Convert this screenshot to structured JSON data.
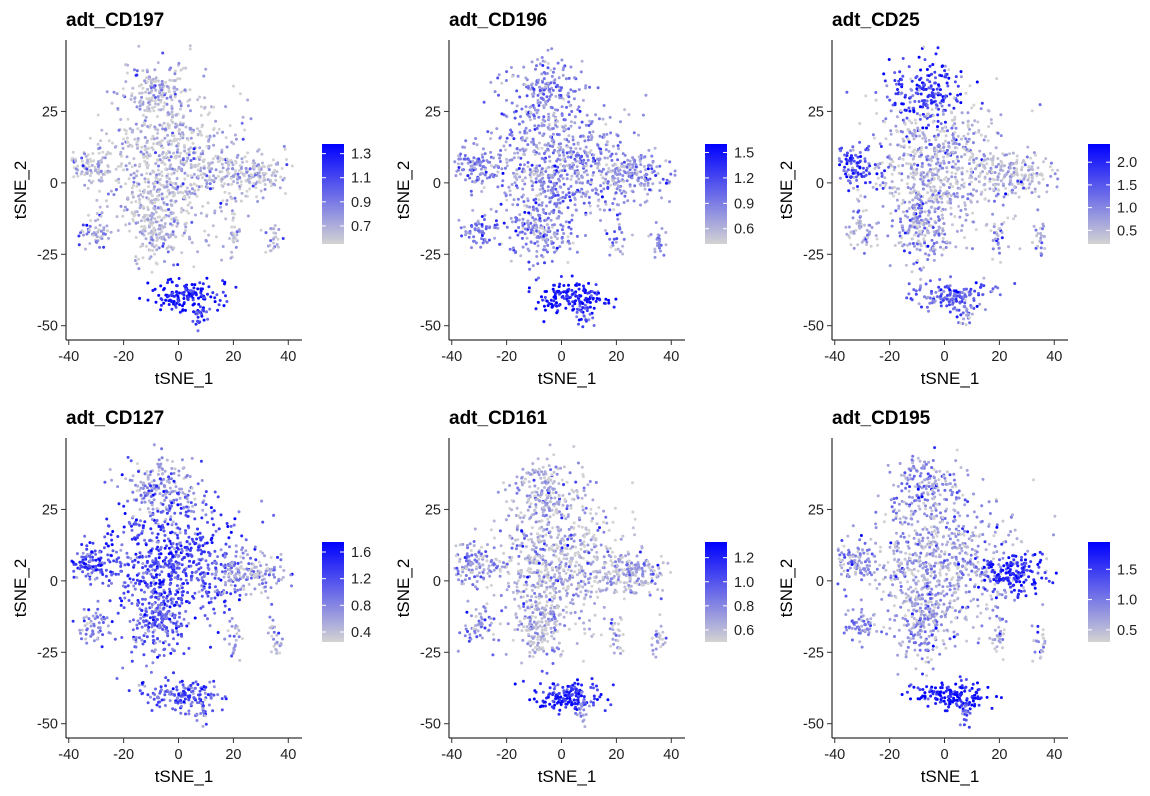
{
  "chart_data": [
    {
      "type": "scatter",
      "title": "adt_CD197",
      "xlabel": "tSNE_1",
      "ylabel": "tSNE_2",
      "xticks": [
        -40,
        -20,
        0,
        20,
        40
      ],
      "yticks": [
        25,
        0,
        -25,
        -50
      ],
      "xlim": [
        -41,
        45
      ],
      "ylim": [
        -55,
        50
      ],
      "colorbar": {
        "ticks": [
          "1.3",
          "1.1",
          "0.9",
          "0.7"
        ],
        "tick_values": [
          1.3,
          1.1,
          0.9,
          0.7
        ],
        "min": 0.55,
        "max": 1.38,
        "low_color": "#d3d3d3",
        "high_color": "#0000ff"
      },
      "clusters": [
        {
          "name": "top",
          "x": -6,
          "y": 31,
          "sx": 6.5,
          "sy": 6,
          "n": 190,
          "level": 0.12
        },
        {
          "name": "central",
          "x": -2,
          "y": 6,
          "sx": 13,
          "sy": 11,
          "n": 650,
          "level": 0.1
        },
        {
          "name": "left",
          "x": -32,
          "y": 6,
          "sx": 4.5,
          "sy": 3.5,
          "n": 100,
          "level": 0.08
        },
        {
          "name": "right",
          "x": 26,
          "y": 3,
          "sx": 7,
          "sy": 3.5,
          "n": 170,
          "level": 0.08
        },
        {
          "name": "lower-middle",
          "x": -8,
          "y": -15,
          "sx": 5,
          "sy": 7,
          "n": 190,
          "level": 0.1
        },
        {
          "name": "small-left",
          "x": -30,
          "y": -16,
          "sx": 3,
          "sy": 3.5,
          "n": 55,
          "level": 0.15
        },
        {
          "name": "small-a",
          "x": 20,
          "y": -19,
          "sx": 1.3,
          "sy": 4,
          "n": 25,
          "level": 0.1
        },
        {
          "name": "small-b",
          "x": 35,
          "y": -20,
          "sx": 1.3,
          "sy": 3.5,
          "n": 25,
          "level": 0.1
        },
        {
          "name": "bottom",
          "x": 3,
          "y": -40,
          "sx": 7,
          "sy": 2.8,
          "n": 150,
          "level": 0.9
        },
        {
          "name": "bottom-tail",
          "x": 8,
          "y": -46,
          "sx": 1.5,
          "sy": 2.5,
          "n": 20,
          "level": 0.6
        }
      ]
    },
    {
      "type": "scatter",
      "title": "adt_CD196",
      "xlabel": "tSNE_1",
      "ylabel": "tSNE_2",
      "xticks": [
        -40,
        -20,
        0,
        20,
        40
      ],
      "yticks": [
        25,
        0,
        -25,
        -50
      ],
      "xlim": [
        -41,
        45
      ],
      "ylim": [
        -55,
        50
      ],
      "colorbar": {
        "ticks": [
          "1.5",
          "1.2",
          "0.9",
          "0.6"
        ],
        "tick_values": [
          1.5,
          1.2,
          0.9,
          0.6
        ],
        "min": 0.42,
        "max": 1.6,
        "low_color": "#d3d3d3",
        "high_color": "#0000ff"
      },
      "clusters": [
        {
          "name": "top",
          "x": -6,
          "y": 31,
          "sx": 6.5,
          "sy": 6,
          "n": 190,
          "level": 0.35
        },
        {
          "name": "central",
          "x": -2,
          "y": 6,
          "sx": 13,
          "sy": 11,
          "n": 650,
          "level": 0.3
        },
        {
          "name": "left",
          "x": -32,
          "y": 6,
          "sx": 4.5,
          "sy": 3.5,
          "n": 100,
          "level": 0.35
        },
        {
          "name": "right",
          "x": 26,
          "y": 3,
          "sx": 7,
          "sy": 3.5,
          "n": 170,
          "level": 0.3
        },
        {
          "name": "lower-middle",
          "x": -8,
          "y": -15,
          "sx": 5,
          "sy": 7,
          "n": 190,
          "level": 0.35
        },
        {
          "name": "small-left",
          "x": -30,
          "y": -16,
          "sx": 3,
          "sy": 3.5,
          "n": 55,
          "level": 0.45
        },
        {
          "name": "small-a",
          "x": 20,
          "y": -19,
          "sx": 1.3,
          "sy": 4,
          "n": 25,
          "level": 0.3
        },
        {
          "name": "small-b",
          "x": 35,
          "y": -20,
          "sx": 1.3,
          "sy": 3.5,
          "n": 25,
          "level": 0.3
        },
        {
          "name": "bottom",
          "x": 3,
          "y": -40,
          "sx": 7,
          "sy": 2.8,
          "n": 150,
          "level": 0.9
        },
        {
          "name": "bottom-tail",
          "x": 8,
          "y": -46,
          "sx": 1.5,
          "sy": 2.5,
          "n": 20,
          "level": 0.6
        }
      ]
    },
    {
      "type": "scatter",
      "title": "adt_CD25",
      "xlabel": "tSNE_1",
      "ylabel": "tSNE_2",
      "xticks": [
        -40,
        -20,
        0,
        20,
        40
      ],
      "yticks": [
        25,
        0,
        -25,
        -50
      ],
      "xlim": [
        -41,
        45
      ],
      "ylim": [
        -55,
        50
      ],
      "colorbar": {
        "ticks": [
          "2.0",
          "1.5",
          "1.0",
          "0.5"
        ],
        "tick_values": [
          2.0,
          1.5,
          1.0,
          0.5
        ],
        "min": 0.2,
        "max": 2.4,
        "low_color": "#d3d3d3",
        "high_color": "#0000ff"
      },
      "clusters": [
        {
          "name": "top",
          "x": -6,
          "y": 31,
          "sx": 6.5,
          "sy": 6,
          "n": 190,
          "level": 0.75
        },
        {
          "name": "central",
          "x": -2,
          "y": 6,
          "sx": 13,
          "sy": 11,
          "n": 650,
          "level": 0.15
        },
        {
          "name": "left",
          "x": -32,
          "y": 6,
          "sx": 4.5,
          "sy": 3.5,
          "n": 100,
          "level": 0.7
        },
        {
          "name": "right",
          "x": 26,
          "y": 3,
          "sx": 7,
          "sy": 3.5,
          "n": 170,
          "level": 0.12
        },
        {
          "name": "lower-middle",
          "x": -8,
          "y": -15,
          "sx": 5,
          "sy": 7,
          "n": 190,
          "level": 0.25
        },
        {
          "name": "small-left",
          "x": -30,
          "y": -16,
          "sx": 3,
          "sy": 3.5,
          "n": 55,
          "level": 0.2
        },
        {
          "name": "small-a",
          "x": 20,
          "y": -19,
          "sx": 1.3,
          "sy": 4,
          "n": 25,
          "level": 0.2
        },
        {
          "name": "small-b",
          "x": 35,
          "y": -20,
          "sx": 1.3,
          "sy": 3.5,
          "n": 25,
          "level": 0.2
        },
        {
          "name": "bottom",
          "x": 3,
          "y": -40,
          "sx": 7,
          "sy": 2.8,
          "n": 150,
          "level": 0.55
        },
        {
          "name": "bottom-tail",
          "x": 8,
          "y": -46,
          "sx": 1.5,
          "sy": 2.5,
          "n": 20,
          "level": 0.3
        }
      ]
    },
    {
      "type": "scatter",
      "title": "adt_CD127",
      "xlabel": "tSNE_1",
      "ylabel": "tSNE_2",
      "xticks": [
        -40,
        -20,
        0,
        20,
        40
      ],
      "yticks": [
        25,
        0,
        -25,
        -50
      ],
      "xlim": [
        -41,
        45
      ],
      "ylim": [
        -55,
        50
      ],
      "colorbar": {
        "ticks": [
          "1.6",
          "1.2",
          "0.8",
          "0.4"
        ],
        "tick_values": [
          1.6,
          1.2,
          0.8,
          0.4
        ],
        "min": 0.25,
        "max": 1.75,
        "low_color": "#d3d3d3",
        "high_color": "#0000ff"
      },
      "clusters": [
        {
          "name": "top",
          "x": -6,
          "y": 31,
          "sx": 6.5,
          "sy": 6,
          "n": 190,
          "level": 0.25
        },
        {
          "name": "central",
          "x": -2,
          "y": 6,
          "sx": 13,
          "sy": 11,
          "n": 650,
          "level": 0.65
        },
        {
          "name": "left",
          "x": -32,
          "y": 6,
          "sx": 4.5,
          "sy": 3.5,
          "n": 100,
          "level": 0.6
        },
        {
          "name": "right",
          "x": 26,
          "y": 3,
          "sx": 7,
          "sy": 3.5,
          "n": 170,
          "level": 0.25
        },
        {
          "name": "lower-middle",
          "x": -8,
          "y": -15,
          "sx": 5,
          "sy": 7,
          "n": 190,
          "level": 0.5
        },
        {
          "name": "small-left",
          "x": -30,
          "y": -16,
          "sx": 3,
          "sy": 3.5,
          "n": 55,
          "level": 0.35
        },
        {
          "name": "small-a",
          "x": 20,
          "y": -19,
          "sx": 1.3,
          "sy": 4,
          "n": 25,
          "level": 0.15
        },
        {
          "name": "small-b",
          "x": 35,
          "y": -20,
          "sx": 1.3,
          "sy": 3.5,
          "n": 25,
          "level": 0.15
        },
        {
          "name": "bottom",
          "x": 3,
          "y": -40,
          "sx": 7,
          "sy": 2.8,
          "n": 150,
          "level": 0.55
        },
        {
          "name": "bottom-tail",
          "x": 8,
          "y": -46,
          "sx": 1.5,
          "sy": 2.5,
          "n": 20,
          "level": 0.45
        }
      ]
    },
    {
      "type": "scatter",
      "title": "adt_CD161",
      "xlabel": "tSNE_1",
      "ylabel": "tSNE_2",
      "xticks": [
        -40,
        -20,
        0,
        20,
        40
      ],
      "yticks": [
        25,
        0,
        -25,
        -50
      ],
      "xlim": [
        -41,
        45
      ],
      "ylim": [
        -55,
        50
      ],
      "colorbar": {
        "ticks": [
          "1.2",
          "1.0",
          "0.8",
          "0.6"
        ],
        "tick_values": [
          1.2,
          1.0,
          0.8,
          0.6
        ],
        "min": 0.5,
        "max": 1.33,
        "low_color": "#d3d3d3",
        "high_color": "#0000ff"
      },
      "clusters": [
        {
          "name": "top",
          "x": -6,
          "y": 31,
          "sx": 6.5,
          "sy": 6,
          "n": 190,
          "level": 0.18
        },
        {
          "name": "central",
          "x": -2,
          "y": 6,
          "sx": 13,
          "sy": 11,
          "n": 650,
          "level": 0.12
        },
        {
          "name": "left",
          "x": -32,
          "y": 6,
          "sx": 4.5,
          "sy": 3.5,
          "n": 100,
          "level": 0.3
        },
        {
          "name": "right",
          "x": 26,
          "y": 3,
          "sx": 7,
          "sy": 3.5,
          "n": 170,
          "level": 0.18
        },
        {
          "name": "lower-middle",
          "x": -8,
          "y": -15,
          "sx": 5,
          "sy": 7,
          "n": 190,
          "level": 0.18
        },
        {
          "name": "small-left",
          "x": -30,
          "y": -16,
          "sx": 3,
          "sy": 3.5,
          "n": 55,
          "level": 0.3
        },
        {
          "name": "small-a",
          "x": 20,
          "y": -19,
          "sx": 1.3,
          "sy": 4,
          "n": 25,
          "level": 0.12
        },
        {
          "name": "small-b",
          "x": 35,
          "y": -20,
          "sx": 1.3,
          "sy": 3.5,
          "n": 25,
          "level": 0.12
        },
        {
          "name": "bottom",
          "x": 3,
          "y": -40,
          "sx": 7,
          "sy": 2.8,
          "n": 150,
          "level": 0.8
        },
        {
          "name": "bottom-tail",
          "x": 8,
          "y": -46,
          "sx": 1.5,
          "sy": 2.5,
          "n": 20,
          "level": 0.4
        }
      ]
    },
    {
      "type": "scatter",
      "title": "adt_CD195",
      "xlabel": "tSNE_1",
      "ylabel": "tSNE_2",
      "xticks": [
        -40,
        -20,
        0,
        20,
        40
      ],
      "yticks": [
        25,
        0,
        -25,
        -50
      ],
      "xlim": [
        -41,
        45
      ],
      "ylim": [
        -55,
        50
      ],
      "colorbar": {
        "ticks": [
          "1.5",
          "1.0",
          "0.5"
        ],
        "tick_values": [
          1.5,
          1.0,
          0.5
        ],
        "min": 0.3,
        "max": 1.95,
        "low_color": "#d3d3d3",
        "high_color": "#0000ff"
      },
      "clusters": [
        {
          "name": "top",
          "x": -6,
          "y": 31,
          "sx": 6.5,
          "sy": 6,
          "n": 190,
          "level": 0.3
        },
        {
          "name": "central",
          "x": -2,
          "y": 6,
          "sx": 13,
          "sy": 11,
          "n": 650,
          "level": 0.2
        },
        {
          "name": "left",
          "x": -32,
          "y": 6,
          "sx": 4.5,
          "sy": 3.5,
          "n": 100,
          "level": 0.3
        },
        {
          "name": "right",
          "x": 26,
          "y": 3,
          "sx": 7,
          "sy": 3.5,
          "n": 170,
          "level": 0.8
        },
        {
          "name": "lower-middle",
          "x": -8,
          "y": -15,
          "sx": 5,
          "sy": 7,
          "n": 190,
          "level": 0.25
        },
        {
          "name": "small-left",
          "x": -30,
          "y": -16,
          "sx": 3,
          "sy": 3.5,
          "n": 55,
          "level": 0.35
        },
        {
          "name": "small-a",
          "x": 20,
          "y": -19,
          "sx": 1.3,
          "sy": 4,
          "n": 25,
          "level": 0.2
        },
        {
          "name": "small-b",
          "x": 35,
          "y": -20,
          "sx": 1.3,
          "sy": 3.5,
          "n": 25,
          "level": 0.2
        },
        {
          "name": "bottom",
          "x": 3,
          "y": -40,
          "sx": 7,
          "sy": 2.8,
          "n": 150,
          "level": 0.85
        },
        {
          "name": "bottom-tail",
          "x": 8,
          "y": -46,
          "sx": 1.5,
          "sy": 2.5,
          "n": 20,
          "level": 0.5
        }
      ]
    }
  ]
}
